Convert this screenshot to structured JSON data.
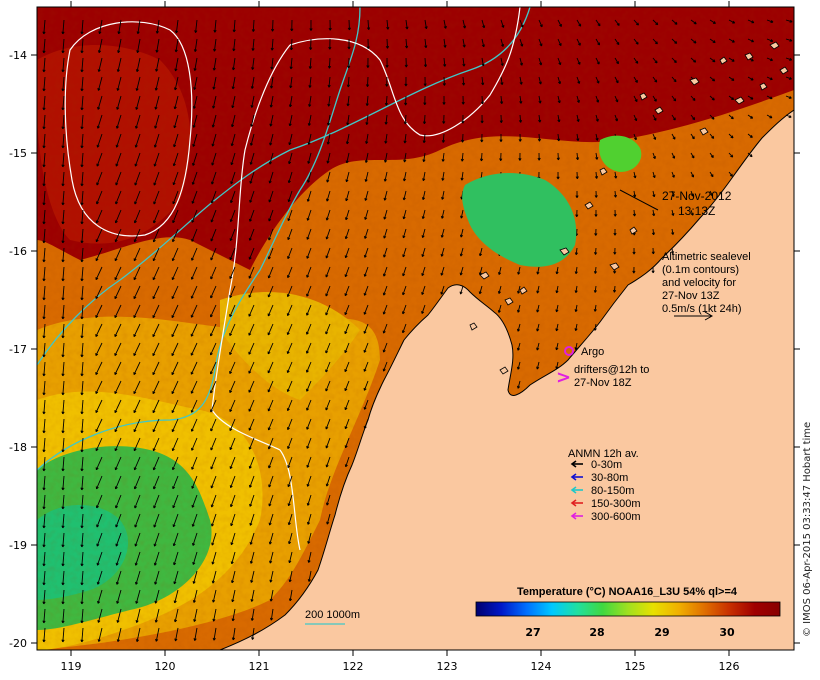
{
  "map": {
    "timestamp_lines": [
      "27-Nov-2012",
      "13:13Z"
    ],
    "altimetry_note_lines": [
      "Altimetric sealevel",
      "(0.1m contours)",
      "and velocity for",
      "27-Nov 13Z",
      "0.5m/s (1kt 24h)"
    ],
    "argo_label": "Argo",
    "drifter_label_lines": [
      "drifters@12h to",
      "27-Nov 18Z"
    ],
    "isobath_label": "200  1000m",
    "credit": "© IMOS 06-Apr-2015 03:33:47 Hobart time",
    "x_ticks": [
      "119",
      "120",
      "121",
      "122",
      "123",
      "124",
      "125",
      "126"
    ],
    "y_ticks": [
      "-14",
      "-15",
      "-16",
      "-17",
      "-18",
      "-19",
      "-20"
    ]
  },
  "legend": {
    "title": "ANMN 12h av.",
    "items": [
      {
        "label": "0-30m",
        "color": "#000000"
      },
      {
        "label": "30-80m",
        "color": "#1010d0"
      },
      {
        "label": "80-150m",
        "color": "#20c8c8"
      },
      {
        "label": "150-300m",
        "color": "#e02020"
      },
      {
        "label": "300-600m",
        "color": "#e020e0"
      }
    ]
  },
  "colorbar": {
    "title": "Temperature (°C) NOAA16_L3U 54% ql>=4",
    "ticks": [
      "27",
      "28",
      "29",
      "30"
    ],
    "colors": [
      "#00006e",
      "#0018c8",
      "#0070ff",
      "#00c8ff",
      "#20e0a0",
      "#40d840",
      "#a0e020",
      "#e8e000",
      "#f0b000",
      "#e07000",
      "#c83000",
      "#a00000",
      "#880000"
    ]
  },
  "colors": {
    "land": "#fac8a0",
    "warm_water": "#a00000",
    "mid_water": "#d06000",
    "cool_water": "#e8a800",
    "cold_water": "#40c040",
    "contour_white": "#ffffff",
    "isobath_cyan": "#40c8c8"
  }
}
